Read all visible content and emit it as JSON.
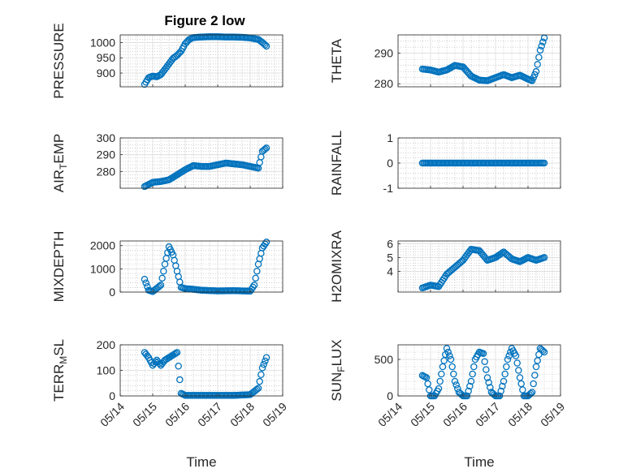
{
  "figure": {
    "title": "Figure 2 low"
  },
  "colors": {
    "marker": "#0072BD",
    "axis": "#262626",
    "grid": "#b4b4b4"
  },
  "chart_data": [
    {
      "id": "pressure",
      "type": "scatter",
      "title": "Figure 2 low",
      "ylabel": "PRESSURE",
      "xlabel": "",
      "ylim": [
        855,
        1025
      ],
      "yticks": [
        900,
        950,
        1000
      ],
      "grid": true,
      "x": [
        "05/14 18:00",
        "05/14 21:00",
        "05/15 00:00",
        "05/15 03:00",
        "05/15 06:00",
        "05/15 09:00",
        "05/15 12:00",
        "05/15 15:00",
        "05/15 18:00",
        "05/15 21:00",
        "05/16 00:00",
        "05/16 03:00",
        "05/16 06:00",
        "05/16 12:00",
        "05/16 18:00",
        "05/17 00:00",
        "05/17 06:00",
        "05/17 12:00",
        "05/17 18:00",
        "05/18 00:00",
        "05/18 06:00",
        "05/18 09:00",
        "05/18 12:00"
      ],
      "y": [
        863,
        885,
        890,
        888,
        895,
        912,
        930,
        948,
        958,
        972,
        996,
        1010,
        1016,
        1018,
        1019,
        1019,
        1018,
        1018,
        1017,
        1015,
        1010,
        1000,
        988
      ]
    },
    {
      "id": "theta",
      "type": "scatter",
      "ylabel": "THETA",
      "xlabel": "",
      "ylim": [
        279,
        296
      ],
      "yticks": [
        280,
        290
      ],
      "grid": true,
      "x": [
        "05/14 18:00",
        "05/15 00:00",
        "05/15 06:00",
        "05/15 12:00",
        "05/15 18:00",
        "05/16 00:00",
        "05/16 06:00",
        "05/16 12:00",
        "05/16 18:00",
        "05/17 00:00",
        "05/17 06:00",
        "05/17 12:00",
        "05/17 18:00",
        "05/18 00:00",
        "05/18 03:00",
        "05/18 06:00",
        "05/18 09:00",
        "05/18 12:00"
      ],
      "y": [
        284.8,
        284.5,
        283.8,
        284.5,
        286,
        285.5,
        282.5,
        281.2,
        281,
        282,
        283,
        282,
        282.8,
        281.5,
        281,
        284,
        291,
        295
      ]
    },
    {
      "id": "air_temp",
      "type": "scatter",
      "ylabel": "AIR_TEMP",
      "xlabel": "",
      "ylim": [
        270,
        300
      ],
      "yticks": [
        280,
        290,
        300
      ],
      "grid": true,
      "x": [
        "05/14 18:00",
        "05/15 00:00",
        "05/15 06:00",
        "05/15 12:00",
        "05/15 18:00",
        "05/16 00:00",
        "05/16 06:00",
        "05/16 12:00",
        "05/16 18:00",
        "05/17 00:00",
        "05/17 06:00",
        "05/17 12:00",
        "05/17 18:00",
        "05/18 00:00",
        "05/18 06:00",
        "05/18 09:00",
        "05/18 12:00"
      ],
      "y": [
        271,
        273.5,
        274,
        275,
        278,
        281,
        283.5,
        283,
        283,
        284,
        285,
        284.5,
        284,
        283,
        282,
        292,
        294
      ]
    },
    {
      "id": "rainfall",
      "type": "scatter",
      "ylabel": "RAINFALL",
      "xlabel": "",
      "ylim": [
        -1,
        1
      ],
      "yticks": [
        -1,
        0,
        1
      ],
      "grid": true,
      "x": [
        "05/14 18:00",
        "05/18 12:00"
      ],
      "y": [
        0,
        0
      ]
    },
    {
      "id": "mixdepth",
      "type": "scatter",
      "ylabel": "MIXDEPTH",
      "xlabel": "",
      "ylim": [
        0,
        2200
      ],
      "yticks": [
        0,
        1000,
        2000
      ],
      "grid": true,
      "x": [
        "05/14 18:00",
        "05/14 21:00",
        "05/15 00:00",
        "05/15 06:00",
        "05/15 09:00",
        "05/15 12:00",
        "05/15 15:00",
        "05/15 18:00",
        "05/15 21:00",
        "05/16 00:00",
        "05/16 06:00",
        "05/16 12:00",
        "05/17 00:00",
        "05/17 12:00",
        "05/18 00:00",
        "05/18 03:00",
        "05/18 06:00",
        "05/18 09:00",
        "05/18 12:00"
      ],
      "y": [
        550,
        80,
        20,
        300,
        1200,
        1950,
        1600,
        900,
        200,
        150,
        120,
        80,
        50,
        60,
        40,
        300,
        1200,
        1900,
        2150
      ]
    },
    {
      "id": "h2omixra",
      "type": "scatter",
      "ylabel": "H2OMIXRA",
      "xlabel": "",
      "ylim": [
        2.5,
        6.2
      ],
      "yticks": [
        4,
        5,
        6
      ],
      "grid": true,
      "x": [
        "05/14 18:00",
        "05/15 00:00",
        "05/15 06:00",
        "05/15 12:00",
        "05/15 18:00",
        "05/16 00:00",
        "05/16 06:00",
        "05/16 12:00",
        "05/16 18:00",
        "05/17 00:00",
        "05/17 06:00",
        "05/17 12:00",
        "05/17 18:00",
        "05/18 00:00",
        "05/18 06:00",
        "05/18 12:00"
      ],
      "y": [
        2.8,
        3,
        2.9,
        3.8,
        4.3,
        4.8,
        5.6,
        5.5,
        4.8,
        5,
        5.4,
        4.9,
        4.7,
        5,
        4.8,
        5
      ]
    },
    {
      "id": "terr_msl",
      "type": "scatter",
      "ylabel": "TERR_MSL",
      "xlabel": "",
      "ylim": [
        0,
        200
      ],
      "yticks": [
        0,
        100,
        200
      ],
      "grid": true,
      "x": [
        "05/14 18:00",
        "05/14 21:00",
        "05/15 00:00",
        "05/15 03:00",
        "05/15 06:00",
        "05/15 09:00",
        "05/15 12:00",
        "05/15 15:00",
        "05/15 18:00",
        "05/15 21:00",
        "05/16 00:00",
        "05/16 06:00",
        "05/16 12:00",
        "05/17 00:00",
        "05/17 12:00",
        "05/18 00:00",
        "05/18 06:00",
        "05/18 09:00",
        "05/18 12:00"
      ],
      "y": [
        170,
        150,
        120,
        140,
        120,
        140,
        150,
        160,
        170,
        10,
        2,
        2,
        2,
        2,
        2,
        5,
        30,
        110,
        150
      ]
    },
    {
      "id": "sun_flux",
      "type": "scatter",
      "ylabel": "SUN_FLUX",
      "xlabel": "Time",
      "ylim": [
        0,
        700
      ],
      "yticks": [
        0,
        500
      ],
      "grid": true,
      "x": [
        "05/14 18:00",
        "05/14 21:00",
        "05/15 00:00",
        "05/15 03:00",
        "05/15 06:00",
        "05/15 09:00",
        "05/15 12:00",
        "05/15 15:00",
        "05/15 18:00",
        "05/15 21:00",
        "05/16 00:00",
        "05/16 03:00",
        "05/16 06:00",
        "05/16 09:00",
        "05/16 12:00",
        "05/16 15:00",
        "05/16 18:00",
        "05/16 21:00",
        "05/17 00:00",
        "05/17 03:00",
        "05/17 06:00",
        "05/17 09:00",
        "05/17 12:00",
        "05/17 15:00",
        "05/17 18:00",
        "05/17 21:00",
        "05/18 00:00",
        "05/18 03:00",
        "05/18 06:00",
        "05/18 09:00",
        "05/18 12:00"
      ],
      "y": [
        280,
        250,
        0,
        0,
        100,
        400,
        650,
        500,
        200,
        50,
        0,
        0,
        200,
        500,
        600,
        580,
        250,
        50,
        0,
        0,
        200,
        500,
        650,
        550,
        250,
        0,
        0,
        50,
        400,
        650,
        600
      ]
    }
  ],
  "xaxis": {
    "ticks": [
      "05/14",
      "05/15",
      "05/16",
      "05/17",
      "05/18",
      "05/19"
    ],
    "tick_dates": [
      "05/14 00:00",
      "05/15 00:00",
      "05/16 00:00",
      "05/17 00:00",
      "05/18 00:00",
      "05/19 00:00"
    ],
    "xlim": [
      "05/14 00:00",
      "05/19 00:00"
    ],
    "label": "Time"
  }
}
